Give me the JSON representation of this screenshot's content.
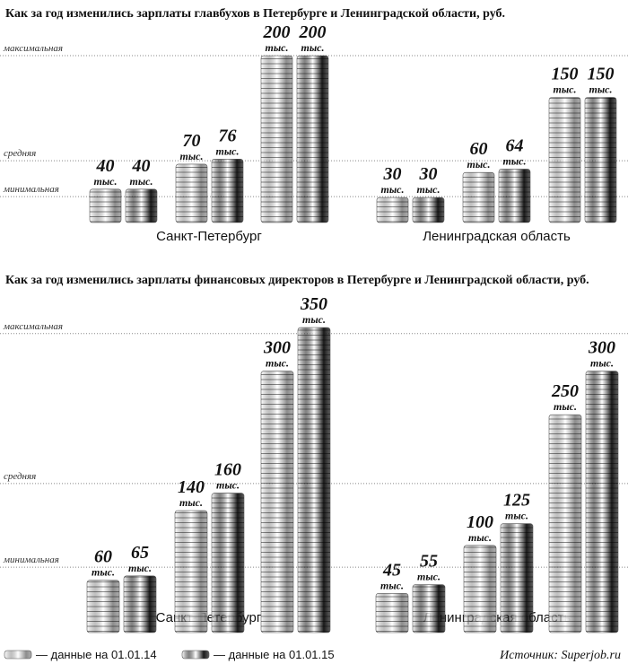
{
  "chart_data": [
    {
      "type": "bar",
      "title": "Как за год изменились зарплаты главбухов в Петербурге и Ленинградской области, руб.",
      "groups": [
        "Санкт-Петербург",
        "Ленинградская область"
      ],
      "unit_label": "тыс.",
      "ylim": [
        0,
        200
      ],
      "reference_lines": [
        {
          "label": "максимальная",
          "value": 200
        },
        {
          "label": "средняя",
          "value": 74
        },
        {
          "label": "минимальная",
          "value": 31
        }
      ],
      "series": [
        {
          "name": "— данные на 01.01.14",
          "color": "#8c8c8c",
          "values": [
            [
              40,
              70,
              200
            ],
            [
              30,
              60,
              150
            ]
          ]
        },
        {
          "name": "— данные на 01.01.15",
          "color": "#1a1a1a",
          "values": [
            [
              40,
              76,
              200
            ],
            [
              30,
              64,
              150
            ]
          ]
        }
      ]
    },
    {
      "type": "bar",
      "title": "Как за год изменились зарплаты финансовых директоров в Петербурге и Ленинградской области, руб.",
      "groups": [
        "Санкт-Петербург",
        "Ленинградская область"
      ],
      "unit_label": "тыс.",
      "ylim": [
        0,
        350
      ],
      "reference_lines": [
        {
          "label": "максимальная",
          "value": 343
        },
        {
          "label": "средняя",
          "value": 171
        },
        {
          "label": "минимальная",
          "value": 75
        }
      ],
      "series": [
        {
          "color": "#8c8c8c",
          "values": [
            [
              60,
              140,
              300
            ],
            [
              45,
              100,
              250
            ]
          ]
        },
        {
          "color": "#1a1a1a",
          "values": [
            [
              65,
              160,
              350
            ],
            [
              55,
              125,
              300
            ]
          ]
        }
      ]
    }
  ],
  "source": "Источник: Superjob.ru"
}
